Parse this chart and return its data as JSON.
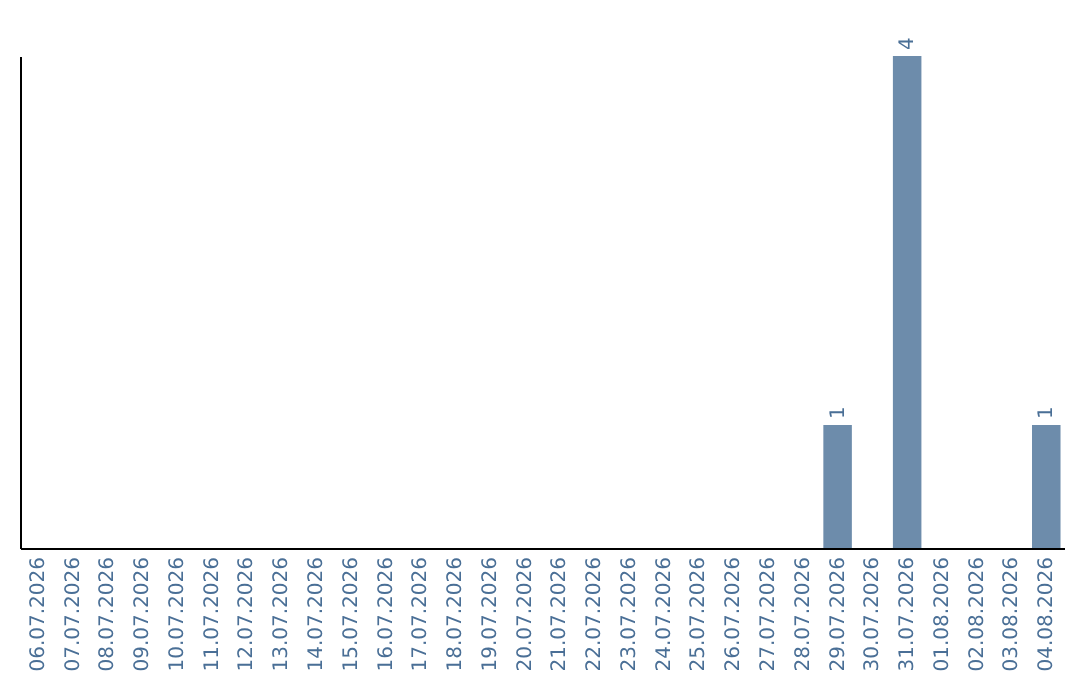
{
  "chart_data": {
    "type": "bar",
    "categories": [
      "06.07.2026",
      "07.07.2026",
      "08.07.2026",
      "09.07.2026",
      "10.07.2026",
      "11.07.2026",
      "12.07.2026",
      "13.07.2026",
      "14.07.2026",
      "15.07.2026",
      "16.07.2026",
      "17.07.2026",
      "18.07.2026",
      "19.07.2026",
      "20.07.2026",
      "21.07.2026",
      "22.07.2026",
      "23.07.2026",
      "24.07.2026",
      "25.07.2026",
      "26.07.2026",
      "27.07.2026",
      "28.07.2026",
      "29.07.2026",
      "30.07.2026",
      "31.07.2026",
      "01.08.2026",
      "02.08.2026",
      "03.08.2026",
      "04.08.2026"
    ],
    "values": [
      null,
      null,
      null,
      null,
      null,
      null,
      null,
      null,
      null,
      null,
      null,
      null,
      null,
      null,
      null,
      null,
      null,
      null,
      null,
      null,
      null,
      null,
      null,
      1,
      null,
      4,
      null,
      null,
      null,
      1
    ],
    "data_labels": true,
    "color": "#6d8cab"
  }
}
